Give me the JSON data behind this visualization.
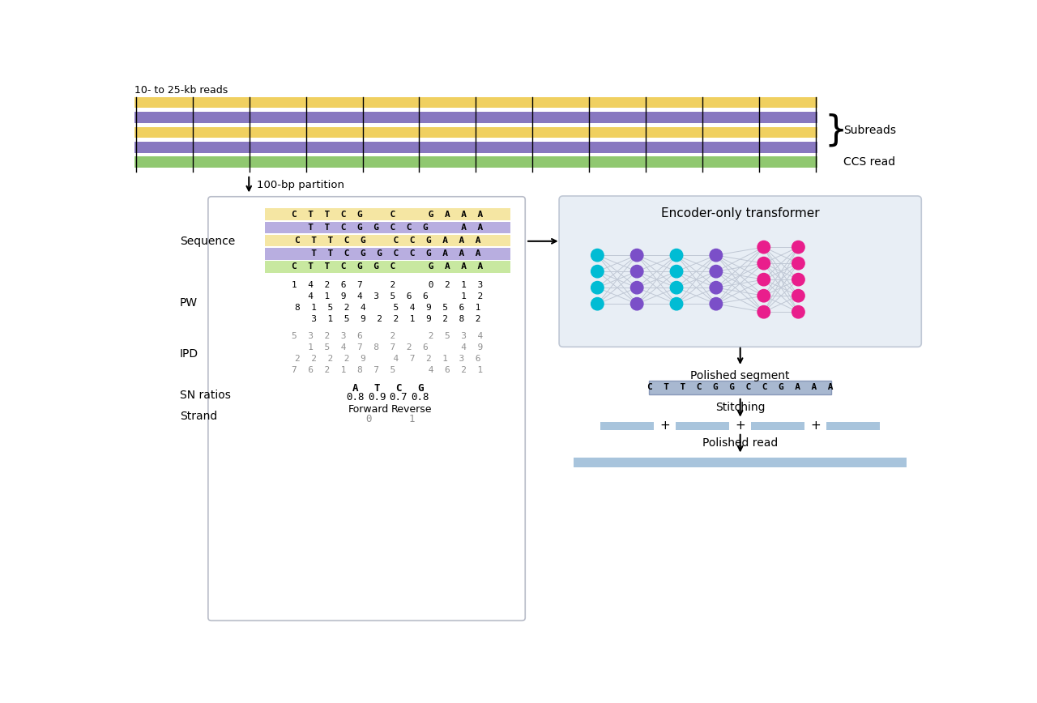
{
  "top_label": "10- to 25-kb reads",
  "partition_label": "100-bp partition",
  "subreads_label": "Subreads",
  "ccs_label": "CCS read",
  "stripe_colors": [
    "#f0d060",
    "#8878c0",
    "#f0d060",
    "#8878c0",
    "#90c870"
  ],
  "num_vertical_lines": 13,
  "seq_row_colors": [
    "#f5e6a3",
    "#b8aee0",
    "#f5e6a3",
    "#b8aee0",
    "#c8e8a0"
  ],
  "seq_rows_text": [
    "C  T  T  C  G     C      G  A  A  A",
    "   T  T  C  G  G  C  C  G      A  A",
    "C  T  T  C  G     C  C  G  A  A  A",
    "   T  T  C  G  G  C  C  G  A  A  A",
    "C  T  T  C  G  G  C      G  A  A  A"
  ],
  "pw_rows": [
    "1  4  2  6  7     2      0  2  1  3",
    "   4  1  9  4  3  5  6  6      1  2",
    "8  1  5  2  4     5  4  9  5  6  1",
    "   3  1  5  9  2  2  1  9  2  8  2"
  ],
  "ipd_rows": [
    "5  3  2  3  6     2      2  5  3  4",
    "   1  5  4  7  8  7  2  6      4  9",
    "2  2  2  2  9     4  7  2  1  3  6",
    "7  6  2  1  8  7  5      4  6  2  1"
  ],
  "sn_header": [
    "A",
    "T",
    "C",
    "G"
  ],
  "sn_values": [
    "0.8",
    "0.9",
    "0.7",
    "0.8"
  ],
  "strand_labels": [
    "Forward",
    "Reverse"
  ],
  "strand_values": [
    "0",
    "1"
  ],
  "encoder_label": "Encoder-only transformer",
  "polished_segment_label": "Polished segment",
  "polished_segment_seq": "C  T  T  C  G  G  C  C  G  A  A  A",
  "stitching_label": "Stitching",
  "polished_read_label": "Polished read",
  "cyan_color": "#00bcd4",
  "purple_color": "#7b4fc8",
  "pink_color": "#e91e8c",
  "bar_color": "#a8c4dc"
}
